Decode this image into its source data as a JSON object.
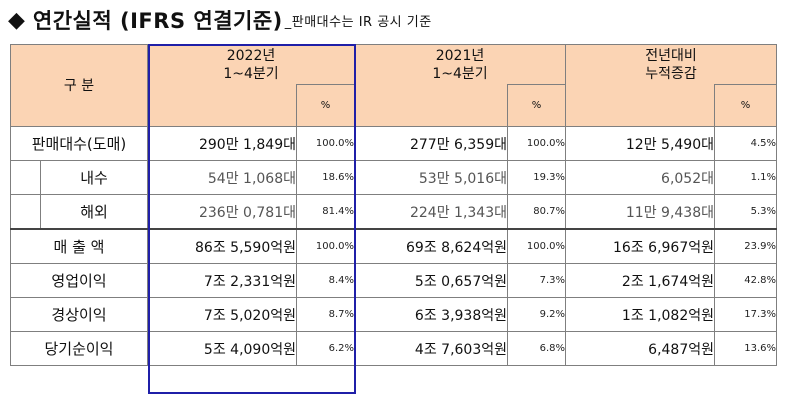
{
  "title": {
    "marker": "◆",
    "main": "연간실적 (IFRS 연결기준)",
    "sub": "_판매대수는 IR 공시 기준"
  },
  "header": {
    "category": "구    분",
    "period_2022": "2022년\n1~4분기",
    "period_2021": "2021년\n1~4분기",
    "comparison": "전년대비\n누적증감",
    "pct": "%"
  },
  "rows": [
    {
      "label": "판매대수(도매)",
      "v2022": "290만 1,849대",
      "p2022": "100.0%",
      "v2021": "277만 6,359대",
      "p2021": "100.0%",
      "diff": "12만 5,490대",
      "pdiff": "4.5%"
    },
    {
      "label": "내수",
      "v2022": "54만 1,068대",
      "p2022": "18.6%",
      "v2021": "53만 5,016대",
      "p2021": "19.3%",
      "diff": "6,052대",
      "pdiff": "1.1%"
    },
    {
      "label": "해외",
      "v2022": "236만 0,781대",
      "p2022": "81.4%",
      "v2021": "224만 1,343대",
      "p2021": "80.7%",
      "diff": "11만 9,438대",
      "pdiff": "5.3%"
    },
    {
      "label": "매 출 액",
      "v2022": "86조 5,590억원",
      "p2022": "100.0%",
      "v2021": "69조 8,624억원",
      "p2021": "100.0%",
      "diff": "16조 6,967억원",
      "pdiff": "23.9%"
    },
    {
      "label": "영업이익",
      "v2022": "7조 2,331억원",
      "p2022": "8.4%",
      "v2021": "5조 0,657억원",
      "p2021": "7.3%",
      "diff": "2조 1,674억원",
      "pdiff": "42.8%"
    },
    {
      "label": "경상이익",
      "v2022": "7조 5,020억원",
      "p2022": "8.7%",
      "v2021": "6조 3,938억원",
      "p2021": "9.2%",
      "diff": "1조 1,082억원",
      "pdiff": "17.3%"
    },
    {
      "label": "당기순이익",
      "v2022": "5조 4,090억원",
      "p2022": "6.2%",
      "v2021": "4조 7,603억원",
      "p2021": "6.8%",
      "diff": "6,487억원",
      "pdiff": "13.6%"
    }
  ]
}
